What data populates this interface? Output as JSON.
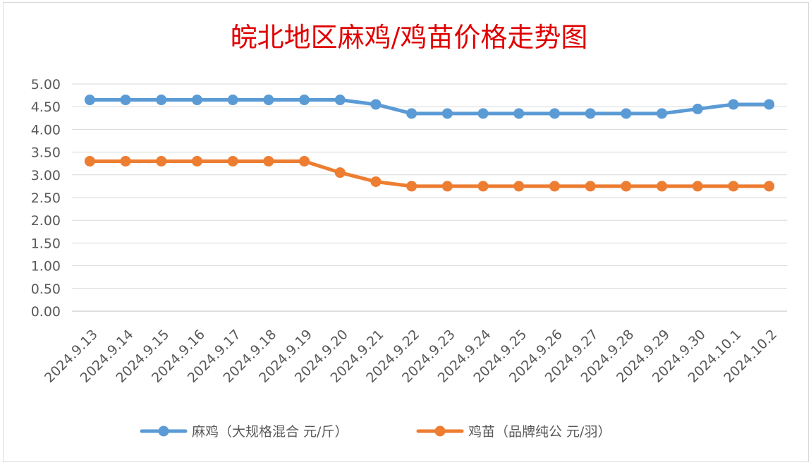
{
  "chart_data": {
    "type": "line",
    "title": "皖北地区麻鸡/鸡苗价格走势图",
    "categories": [
      "2024.9.13",
      "2024.9.14",
      "2024.9.15",
      "2024.9.16",
      "2024.9.17",
      "2024.9.18",
      "2024.9.19",
      "2024.9.20",
      "2024.9.21",
      "2024.9.22",
      "2024.9.23",
      "2024.9.24",
      "2024.9.25",
      "2024.9.26",
      "2024.9.27",
      "2024.9.28",
      "2024.9.29",
      "2024.9.30",
      "2024.10.1",
      "2024.10.2"
    ],
    "series": [
      {
        "name": "麻鸡（大规格混合 元/斤）",
        "color": "#5b9bd5",
        "values": [
          4.65,
          4.65,
          4.65,
          4.65,
          4.65,
          4.65,
          4.65,
          4.65,
          4.55,
          4.35,
          4.35,
          4.35,
          4.35,
          4.35,
          4.35,
          4.35,
          4.35,
          4.45,
          4.55,
          4.55
        ]
      },
      {
        "name": "鸡苗（品牌纯公 元/羽）",
        "color": "#ed7d31",
        "values": [
          3.3,
          3.3,
          3.3,
          3.3,
          3.3,
          3.3,
          3.3,
          3.05,
          2.85,
          2.75,
          2.75,
          2.75,
          2.75,
          2.75,
          2.75,
          2.75,
          2.75,
          2.75,
          2.75,
          2.75
        ]
      }
    ],
    "ylim": [
      0,
      5
    ],
    "yticks": [
      "0.00",
      "0.50",
      "1.00",
      "1.50",
      "2.00",
      "2.50",
      "3.00",
      "3.50",
      "4.00",
      "4.50",
      "5.00"
    ],
    "grid": true,
    "legend_position": "bottom"
  }
}
